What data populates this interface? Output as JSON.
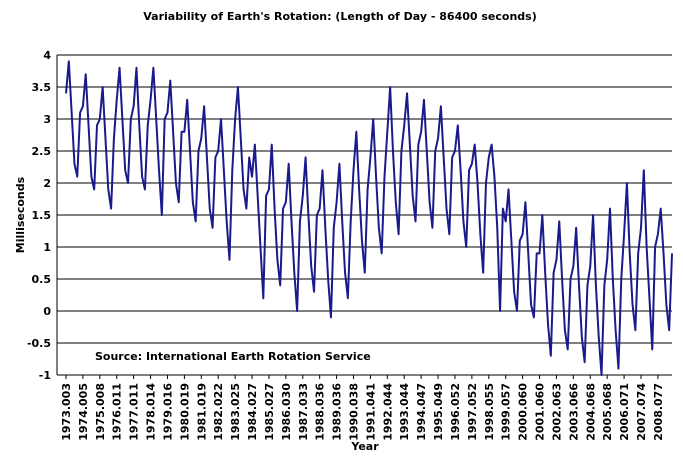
{
  "chart_data": {
    "type": "line",
    "title": "Variability of Earth's Rotation: (Length of Day - 86400 seconds)",
    "x_label": "Year",
    "y_label": "Milliseconds",
    "annotation": "Source: International Earth Rotation Service",
    "ylim": [
      -1,
      4
    ],
    "yticks": [
      -1,
      -0.5,
      0,
      0.5,
      1,
      1.5,
      2,
      2.5,
      3,
      3.5,
      4
    ],
    "grid": true,
    "categories": [
      "1973.003",
      null,
      null,
      null,
      null,
      null,
      "1974.005",
      null,
      null,
      null,
      null,
      null,
      "1975.008",
      null,
      null,
      null,
      null,
      null,
      "1976.011",
      null,
      null,
      null,
      null,
      null,
      "1977.011",
      null,
      null,
      null,
      null,
      null,
      "1978.014",
      null,
      null,
      null,
      null,
      null,
      "1979.016",
      null,
      null,
      null,
      null,
      null,
      "1980.019",
      null,
      null,
      null,
      null,
      null,
      "1981.019",
      null,
      null,
      null,
      null,
      null,
      "1982.022",
      null,
      null,
      null,
      null,
      null,
      "1983.025",
      null,
      null,
      null,
      null,
      null,
      "1984.027",
      null,
      null,
      null,
      null,
      null,
      "1985.027",
      null,
      null,
      null,
      null,
      null,
      "1986.030",
      null,
      null,
      null,
      null,
      null,
      "1987.033",
      null,
      null,
      null,
      null,
      null,
      "1988.036",
      null,
      null,
      null,
      null,
      null,
      "1989.036",
      null,
      null,
      null,
      null,
      null,
      "1990.038",
      null,
      null,
      null,
      null,
      null,
      "1991.041",
      null,
      null,
      null,
      null,
      null,
      "1992.044",
      null,
      null,
      null,
      null,
      null,
      "1993.044",
      null,
      null,
      null,
      null,
      null,
      "1994.047",
      null,
      null,
      null,
      null,
      null,
      "1995.049",
      null,
      null,
      null,
      null,
      null,
      "1996.052",
      null,
      null,
      null,
      null,
      null,
      "1997.052",
      null,
      null,
      null,
      null,
      null,
      "1998.055",
      null,
      null,
      null,
      null,
      null,
      "1999.057",
      null,
      null,
      null,
      null,
      null,
      "2000.060",
      null,
      null,
      null,
      null,
      null,
      "2001.060",
      null,
      null,
      null,
      null,
      null,
      "2002.063",
      null,
      null,
      null,
      null,
      null,
      "2003.066",
      null,
      null,
      null,
      null,
      null,
      "2004.068",
      null,
      null,
      null,
      null,
      null,
      "2005.068",
      null,
      null,
      null,
      null,
      null,
      "2006.071",
      null,
      null,
      null,
      null,
      null,
      "2007.074",
      null,
      null,
      null,
      null,
      null,
      "2008.077",
      null,
      null,
      null,
      null,
      null
    ],
    "series": [
      {
        "name": "Length of Day",
        "color": "#1a1a8c",
        "values": [
          3.4,
          3.9,
          3.1,
          2.3,
          2.1,
          3.1,
          3.2,
          3.7,
          2.9,
          2.1,
          1.9,
          2.9,
          3.0,
          3.5,
          2.7,
          1.9,
          1.6,
          2.7,
          3.3,
          3.8,
          3.0,
          2.2,
          2.0,
          3.0,
          3.2,
          3.8,
          2.9,
          2.1,
          1.9,
          2.9,
          3.3,
          3.8,
          3.0,
          2.2,
          1.5,
          3.0,
          3.1,
          3.6,
          2.8,
          2.0,
          1.7,
          2.8,
          2.8,
          3.3,
          2.5,
          1.7,
          1.4,
          2.5,
          2.7,
          3.2,
          2.4,
          1.6,
          1.3,
          2.4,
          2.5,
          3.0,
          2.2,
          1.4,
          0.8,
          2.2,
          3.0,
          3.5,
          2.7,
          1.9,
          1.6,
          2.4,
          2.1,
          2.6,
          1.8,
          1.0,
          0.2,
          1.8,
          1.9,
          2.6,
          1.6,
          0.8,
          0.4,
          1.6,
          1.7,
          2.3,
          1.4,
          0.6,
          0.0,
          1.4,
          1.8,
          2.4,
          1.5,
          0.7,
          0.3,
          1.5,
          1.6,
          2.2,
          1.3,
          0.5,
          -0.1,
          1.3,
          1.7,
          2.3,
          1.4,
          0.6,
          0.2,
          1.4,
          2.2,
          2.8,
          1.9,
          1.1,
          0.6,
          1.9,
          2.4,
          3.0,
          2.1,
          1.3,
          0.9,
          2.1,
          2.8,
          3.5,
          2.5,
          1.7,
          1.2,
          2.5,
          2.9,
          3.4,
          2.6,
          1.8,
          1.4,
          2.6,
          2.8,
          3.3,
          2.5,
          1.7,
          1.3,
          2.5,
          2.7,
          3.2,
          2.4,
          1.6,
          1.2,
          2.4,
          2.5,
          2.9,
          2.2,
          1.4,
          1.0,
          2.2,
          2.3,
          2.6,
          2.0,
          1.2,
          0.6,
          2.0,
          2.4,
          2.6,
          2.1,
          1.3,
          0.0,
          1.6,
          1.4,
          1.9,
          1.1,
          0.3,
          0.0,
          1.1,
          1.2,
          1.7,
          0.9,
          0.1,
          -0.1,
          0.9,
          0.9,
          1.5,
          0.6,
          -0.2,
          -0.7,
          0.6,
          0.8,
          1.4,
          0.5,
          -0.3,
          -0.6,
          0.5,
          0.7,
          1.3,
          0.4,
          -0.4,
          -0.8,
          0.4,
          0.7,
          1.5,
          0.4,
          -0.4,
          -1.0,
          0.4,
          0.8,
          1.6,
          0.5,
          -0.3,
          -0.9,
          0.5,
          1.2,
          2.0,
          0.9,
          0.1,
          -0.3,
          0.9,
          1.3,
          2.2,
          1.0,
          0.2,
          -0.6,
          1.0,
          1.2,
          1.6,
          0.9,
          0.1,
          -0.3,
          0.9
        ]
      }
    ]
  }
}
